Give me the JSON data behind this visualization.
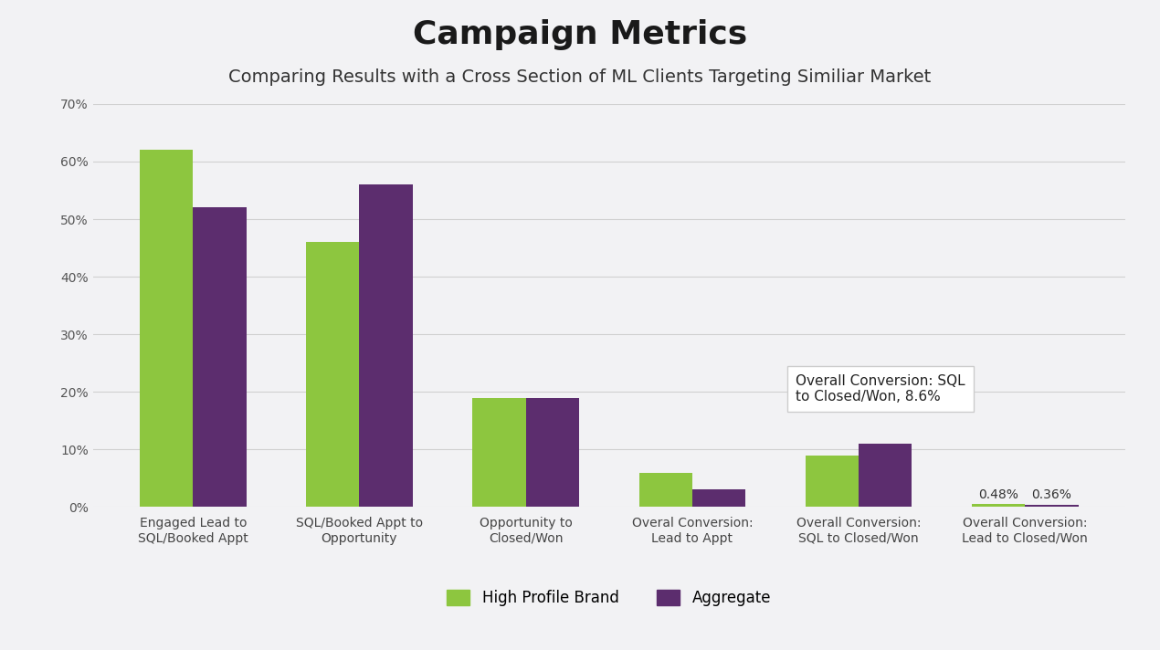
{
  "title": "Campaign Metrics",
  "subtitle": "Comparing Results with a Cross Section of ML Clients Targeting Similiar Market",
  "categories": [
    "Engaged Lead to\nSQL/Booked Appt",
    "SQL/Booked Appt to\nOpportunity",
    "Opportunity to\nClosed/Won",
    "Overal Conversion:\nLead to Appt",
    "Overall Conversion:\nSQL to Closed/Won",
    "Overall Conversion:\nLead to Closed/Won"
  ],
  "high_profile": [
    0.62,
    0.46,
    0.19,
    0.06,
    0.09,
    0.0048
  ],
  "aggregate": [
    0.52,
    0.56,
    0.19,
    0.03,
    0.11,
    0.0036
  ],
  "high_profile_color": "#8DC63F",
  "aggregate_color": "#5C2D6E",
  "background_color": "#F2F2F4",
  "annotation_text": "Overall Conversion: SQL\nto Closed/Won, 8.6%",
  "ylim": [
    0,
    0.7
  ],
  "yticks": [
    0.0,
    0.1,
    0.2,
    0.3,
    0.4,
    0.5,
    0.6,
    0.7
  ],
  "legend_labels": [
    "High Profile Brand",
    "Aggregate"
  ],
  "bar_width": 0.32,
  "title_fontsize": 26,
  "subtitle_fontsize": 14,
  "tick_label_fontsize": 10,
  "legend_fontsize": 12
}
